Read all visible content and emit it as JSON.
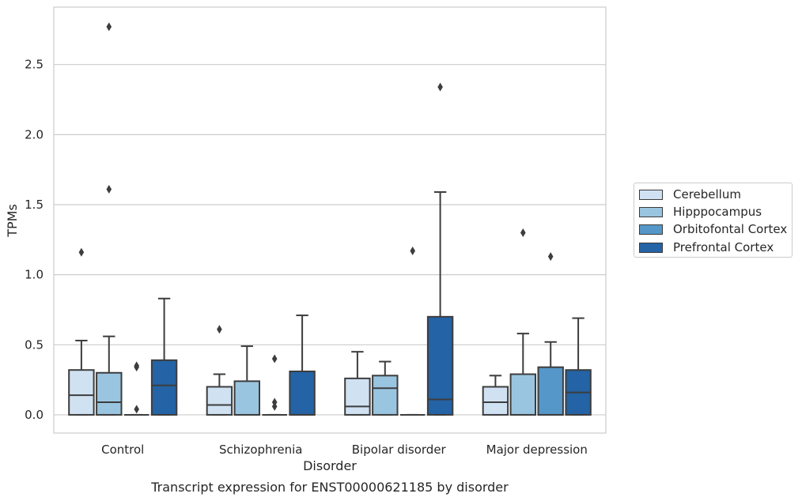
{
  "chart_data": {
    "type": "box",
    "title": "Transcript expression for ENST00000621185 by disorder",
    "xlabel": "Disorder",
    "ylabel": "TPMs",
    "ylim": [
      -0.13,
      2.91
    ],
    "yticks": [
      "0.0",
      "0.5",
      "1.0",
      "1.5",
      "2.0",
      "2.5"
    ],
    "ytick_values": [
      0.0,
      0.5,
      1.0,
      1.5,
      2.0,
      2.5
    ],
    "grid": true,
    "legend_position": "right",
    "categories": [
      "Control",
      "Schizophrenia",
      "Bipolar disorder",
      "Major depression"
    ],
    "series": [
      {
        "name": "Cerebellum",
        "color": "#d0e1f2",
        "boxes": [
          {
            "whisker_low": 0.0,
            "q1": 0.0,
            "median": 0.14,
            "q3": 0.32,
            "whisker_high": 0.53,
            "outliers": [
              1.16
            ]
          },
          {
            "whisker_low": 0.0,
            "q1": 0.0,
            "median": 0.07,
            "q3": 0.2,
            "whisker_high": 0.29,
            "outliers": [
              0.61
            ]
          },
          {
            "whisker_low": 0.0,
            "q1": 0.0,
            "median": 0.06,
            "q3": 0.26,
            "whisker_high": 0.45,
            "outliers": []
          },
          {
            "whisker_low": 0.0,
            "q1": 0.0,
            "median": 0.09,
            "q3": 0.2,
            "whisker_high": 0.28,
            "outliers": []
          }
        ]
      },
      {
        "name": "Hipppocampus",
        "color": "#9ac5e0",
        "boxes": [
          {
            "whisker_low": 0.0,
            "q1": 0.0,
            "median": 0.09,
            "q3": 0.3,
            "whisker_high": 0.56,
            "outliers": [
              1.61,
              2.77
            ]
          },
          {
            "whisker_low": 0.0,
            "q1": 0.0,
            "median": 0.0,
            "q3": 0.24,
            "whisker_high": 0.49,
            "outliers": []
          },
          {
            "whisker_low": 0.0,
            "q1": 0.0,
            "median": 0.19,
            "q3": 0.28,
            "whisker_high": 0.38,
            "outliers": []
          },
          {
            "whisker_low": 0.0,
            "q1": 0.0,
            "median": 0.0,
            "q3": 0.29,
            "whisker_high": 0.58,
            "outliers": [
              1.3
            ]
          }
        ]
      },
      {
        "name": "Orbitofontal Cortex",
        "color": "#5597c8",
        "boxes": [
          {
            "whisker_low": 0.0,
            "q1": 0.0,
            "median": 0.0,
            "q3": 0.0,
            "whisker_high": 0.0,
            "outliers": [
              0.04,
              0.34,
              0.35
            ]
          },
          {
            "whisker_low": 0.0,
            "q1": 0.0,
            "median": 0.0,
            "q3": 0.0,
            "whisker_high": 0.0,
            "outliers": [
              0.06,
              0.09,
              0.4
            ]
          },
          {
            "whisker_low": 0.0,
            "q1": 0.0,
            "median": 0.0,
            "q3": 0.0,
            "whisker_high": 0.0,
            "outliers": [
              1.17
            ]
          },
          {
            "whisker_low": 0.0,
            "q1": 0.0,
            "median": 0.0,
            "q3": 0.34,
            "whisker_high": 0.52,
            "outliers": [
              1.13
            ]
          }
        ]
      },
      {
        "name": "Prefrontal Cortex",
        "color": "#2463a5",
        "boxes": [
          {
            "whisker_low": 0.0,
            "q1": 0.0,
            "median": 0.21,
            "q3": 0.39,
            "whisker_high": 0.83,
            "outliers": []
          },
          {
            "whisker_low": 0.0,
            "q1": 0.0,
            "median": 0.0,
            "q3": 0.31,
            "whisker_high": 0.71,
            "outliers": []
          },
          {
            "whisker_low": 0.0,
            "q1": 0.0,
            "median": 0.11,
            "q3": 0.7,
            "whisker_high": 1.59,
            "outliers": [
              2.34
            ]
          },
          {
            "whisker_low": 0.0,
            "q1": 0.0,
            "median": 0.16,
            "q3": 0.32,
            "whisker_high": 0.69,
            "outliers": []
          }
        ]
      }
    ]
  }
}
